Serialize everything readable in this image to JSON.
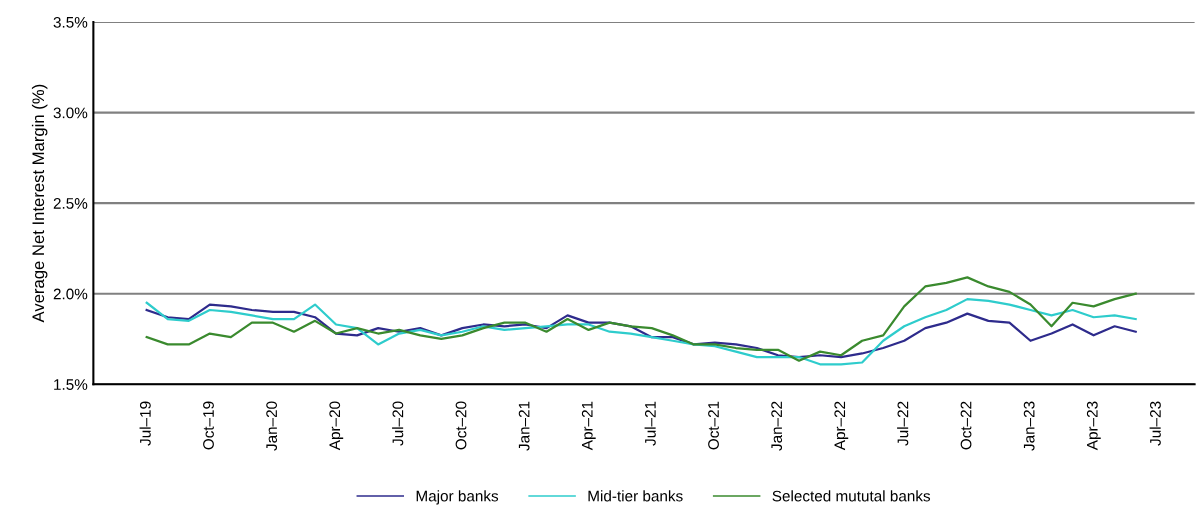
{
  "chart_data": {
    "type": "line",
    "ylabel": "Average Net Interest Margin (%)",
    "x": [
      "2019-07",
      "2019-08",
      "2019-09",
      "2019-10",
      "2019-11",
      "2019-12",
      "2020-01",
      "2020-02",
      "2020-03",
      "2020-04",
      "2020-05",
      "2020-06",
      "2020-07",
      "2020-08",
      "2020-09",
      "2020-10",
      "2020-11",
      "2020-12",
      "2021-01",
      "2021-02",
      "2021-03",
      "2021-04",
      "2021-05",
      "2021-06",
      "2021-07",
      "2021-08",
      "2021-09",
      "2021-10",
      "2021-11",
      "2021-12",
      "2022-01",
      "2022-02",
      "2022-03",
      "2022-04",
      "2022-05",
      "2022-06",
      "2022-07",
      "2022-08",
      "2022-09",
      "2022-10",
      "2022-11",
      "2022-12",
      "2023-01",
      "2023-02",
      "2023-03",
      "2023-04",
      "2023-05",
      "2023-06"
    ],
    "series": [
      {
        "name": "Major banks",
        "color": "#2e2b8c",
        "values": [
          1.91,
          1.87,
          1.86,
          1.94,
          1.93,
          1.91,
          1.9,
          1.9,
          1.87,
          1.78,
          1.77,
          1.81,
          1.79,
          1.81,
          1.77,
          1.81,
          1.83,
          1.82,
          1.83,
          1.81,
          1.88,
          1.84,
          1.84,
          1.82,
          1.76,
          1.76,
          1.72,
          1.73,
          1.72,
          1.7,
          1.66,
          1.65,
          1.66,
          1.65,
          1.67,
          1.7,
          1.74,
          1.81,
          1.84,
          1.89,
          1.85,
          1.84,
          1.74,
          1.78,
          1.83,
          1.77,
          1.82,
          1.79
        ]
      },
      {
        "name": "Mid-tier banks",
        "color": "#2ecccc",
        "values": [
          1.95,
          1.86,
          1.85,
          1.91,
          1.9,
          1.88,
          1.86,
          1.86,
          1.94,
          1.83,
          1.81,
          1.72,
          1.78,
          1.8,
          1.77,
          1.79,
          1.82,
          1.8,
          1.81,
          1.82,
          1.83,
          1.83,
          1.79,
          1.78,
          1.76,
          1.74,
          1.72,
          1.71,
          1.68,
          1.65,
          1.65,
          1.65,
          1.61,
          1.61,
          1.62,
          1.74,
          1.82,
          1.87,
          1.91,
          1.97,
          1.96,
          1.94,
          1.91,
          1.88,
          1.91,
          1.87,
          1.88,
          1.86
        ]
      },
      {
        "name": "Selected mututal banks",
        "color": "#3a8a2e",
        "values": [
          1.76,
          1.72,
          1.72,
          1.78,
          1.76,
          1.84,
          1.84,
          1.79,
          1.85,
          1.78,
          1.81,
          1.78,
          1.8,
          1.77,
          1.75,
          1.77,
          1.81,
          1.84,
          1.84,
          1.79,
          1.86,
          1.8,
          1.84,
          1.82,
          1.81,
          1.77,
          1.72,
          1.72,
          1.7,
          1.69,
          1.69,
          1.63,
          1.68,
          1.66,
          1.74,
          1.77,
          1.93,
          2.04,
          2.06,
          2.09,
          2.04,
          2.01,
          1.94,
          1.82,
          1.95,
          1.93,
          1.97,
          2.0
        ]
      }
    ],
    "xlim": [
      "2019-04-15",
      "2023-08-25"
    ],
    "xticks": [
      {
        "value": "2019-07",
        "label": "Jul–19"
      },
      {
        "value": "2019-10",
        "label": "Oct–19"
      },
      {
        "value": "2020-01",
        "label": "Jan–20"
      },
      {
        "value": "2020-04",
        "label": "Apr–20"
      },
      {
        "value": "2020-07",
        "label": "Jul–20"
      },
      {
        "value": "2020-10",
        "label": "Oct–20"
      },
      {
        "value": "2021-01",
        "label": "Jan–21"
      },
      {
        "value": "2021-04",
        "label": "Apr–21"
      },
      {
        "value": "2021-07",
        "label": "Jul–21"
      },
      {
        "value": "2021-10",
        "label": "Oct–21"
      },
      {
        "value": "2022-01",
        "label": "Jan–22"
      },
      {
        "value": "2022-04",
        "label": "Apr–22"
      },
      {
        "value": "2022-07",
        "label": "Jul–22"
      },
      {
        "value": "2022-10",
        "label": "Oct–22"
      },
      {
        "value": "2023-01",
        "label": "Jan–23"
      },
      {
        "value": "2023-04",
        "label": "Apr–23"
      },
      {
        "value": "2023-07",
        "label": "Jul–23"
      }
    ],
    "ylim": [
      1.5,
      3.5
    ],
    "yticks": [
      {
        "value": 1.5,
        "label": "1.5%"
      },
      {
        "value": 2.0,
        "label": "2.0%"
      },
      {
        "value": 2.5,
        "label": "2.5%"
      },
      {
        "value": 3.0,
        "label": "3.0%"
      },
      {
        "value": 3.5,
        "label": "3.5%"
      }
    ],
    "grid": "y",
    "legend": "bottom",
    "marker": "none",
    "line_style": "solid"
  }
}
